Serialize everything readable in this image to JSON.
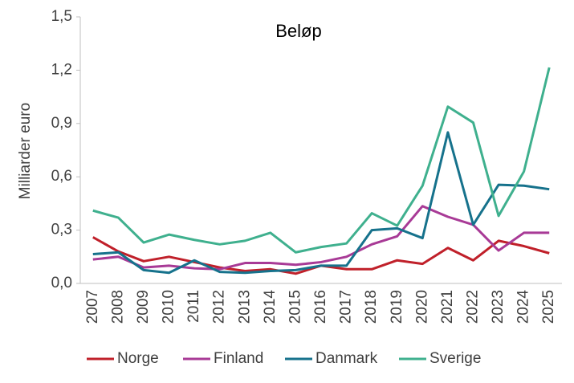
{
  "chart_data": {
    "type": "line",
    "title": "Beløp",
    "y_label": "Milliarder euro",
    "categories": [
      "2007",
      "2008",
      "2009",
      "2010",
      "2011",
      "2012",
      "2013",
      "2014",
      "2015",
      "2016",
      "2017",
      "2018",
      "2019",
      "2020",
      "2021",
      "2022",
      "2023",
      "2024",
      "2025"
    ],
    "series": [
      {
        "name": "Norge",
        "color": "#c0202a",
        "values": [
          0.26,
          0.18,
          0.125,
          0.15,
          0.12,
          0.09,
          0.07,
          0.08,
          0.055,
          0.1,
          0.08,
          0.08,
          0.13,
          0.11,
          0.2,
          0.13,
          0.24,
          0.21,
          0.17
        ]
      },
      {
        "name": "Finland",
        "color": "#a83a96",
        "values": [
          0.135,
          0.15,
          0.09,
          0.1,
          0.085,
          0.08,
          0.115,
          0.115,
          0.105,
          0.12,
          0.15,
          0.22,
          0.265,
          0.435,
          0.375,
          0.33,
          0.185,
          0.285,
          0.285
        ]
      },
      {
        "name": "Danmark",
        "color": "#16728c",
        "values": [
          0.165,
          0.175,
          0.075,
          0.06,
          0.13,
          0.065,
          0.06,
          0.07,
          0.075,
          0.1,
          0.1,
          0.3,
          0.31,
          0.255,
          0.85,
          0.33,
          0.555,
          0.55,
          0.53
        ]
      },
      {
        "name": "Sverige",
        "color": "#3fb08e",
        "values": [
          0.41,
          0.37,
          0.23,
          0.275,
          0.245,
          0.22,
          0.24,
          0.285,
          0.175,
          0.205,
          0.225,
          0.395,
          0.325,
          0.55,
          0.995,
          0.905,
          0.38,
          0.63,
          1.215
        ]
      }
    ],
    "ylim": [
      0,
      1.5
    ],
    "yticks": [
      {
        "value": 0,
        "label": "0,0"
      },
      {
        "value": 0.3,
        "label": "0,3"
      },
      {
        "value": 0.6,
        "label": "0,6"
      },
      {
        "value": 0.9,
        "label": "0,9"
      },
      {
        "value": 1.2,
        "label": "1,2"
      },
      {
        "value": 1.5,
        "label": "1,5"
      }
    ],
    "grid": false
  }
}
